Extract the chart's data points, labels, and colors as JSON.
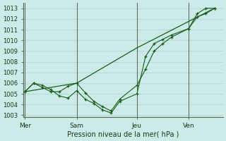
{
  "xlabel": "Pression niveau de la mer( hPa )",
  "bg_color": "#cceae8",
  "grid_color": "#aad4d0",
  "line_color": "#1a5c1a",
  "vline_color": "#556655",
  "ylim": [
    1002.8,
    1013.5
  ],
  "yticks": [
    1003,
    1004,
    1005,
    1006,
    1007,
    1008,
    1009,
    1010,
    1011,
    1012,
    1013
  ],
  "day_labels": [
    "Mer",
    "Sam",
    "Jeu",
    "Ven"
  ],
  "day_positions": [
    0.0,
    3.0,
    6.5,
    9.5
  ],
  "xlim": [
    -0.1,
    11.5
  ],
  "series1_x": [
    0.0,
    0.5,
    1.0,
    1.5,
    2.0,
    2.5,
    3.0,
    3.5,
    4.0,
    4.5,
    5.0,
    5.5,
    6.5,
    7.0,
    7.5,
    8.0,
    8.5,
    9.5,
    10.0,
    10.5,
    11.0
  ],
  "series1_y": [
    1005.2,
    1006.0,
    1005.6,
    1005.2,
    1005.2,
    1005.7,
    1006.0,
    1005.1,
    1004.3,
    1003.8,
    1003.4,
    1004.5,
    1005.8,
    1007.3,
    1009.0,
    1009.7,
    1010.3,
    1011.1,
    1012.2,
    1012.5,
    1013.0
  ],
  "series2_x": [
    0.0,
    0.5,
    1.0,
    1.5,
    2.0,
    2.5,
    3.0,
    3.5,
    4.0,
    4.5,
    5.0,
    5.5,
    6.5,
    7.0,
    7.5,
    8.0,
    8.5,
    9.5,
    10.0,
    10.5,
    11.0
  ],
  "series2_y": [
    1005.2,
    1006.0,
    1005.8,
    1005.4,
    1004.8,
    1004.6,
    1005.3,
    1004.5,
    1004.1,
    1003.5,
    1003.2,
    1004.3,
    1005.0,
    1008.5,
    1009.7,
    1010.1,
    1010.5,
    1011.1,
    1012.5,
    1013.0,
    1013.0
  ],
  "series3_x": [
    0.0,
    3.0,
    6.5,
    11.0
  ],
  "series3_y": [
    1005.2,
    1006.0,
    1009.3,
    1013.0
  ]
}
